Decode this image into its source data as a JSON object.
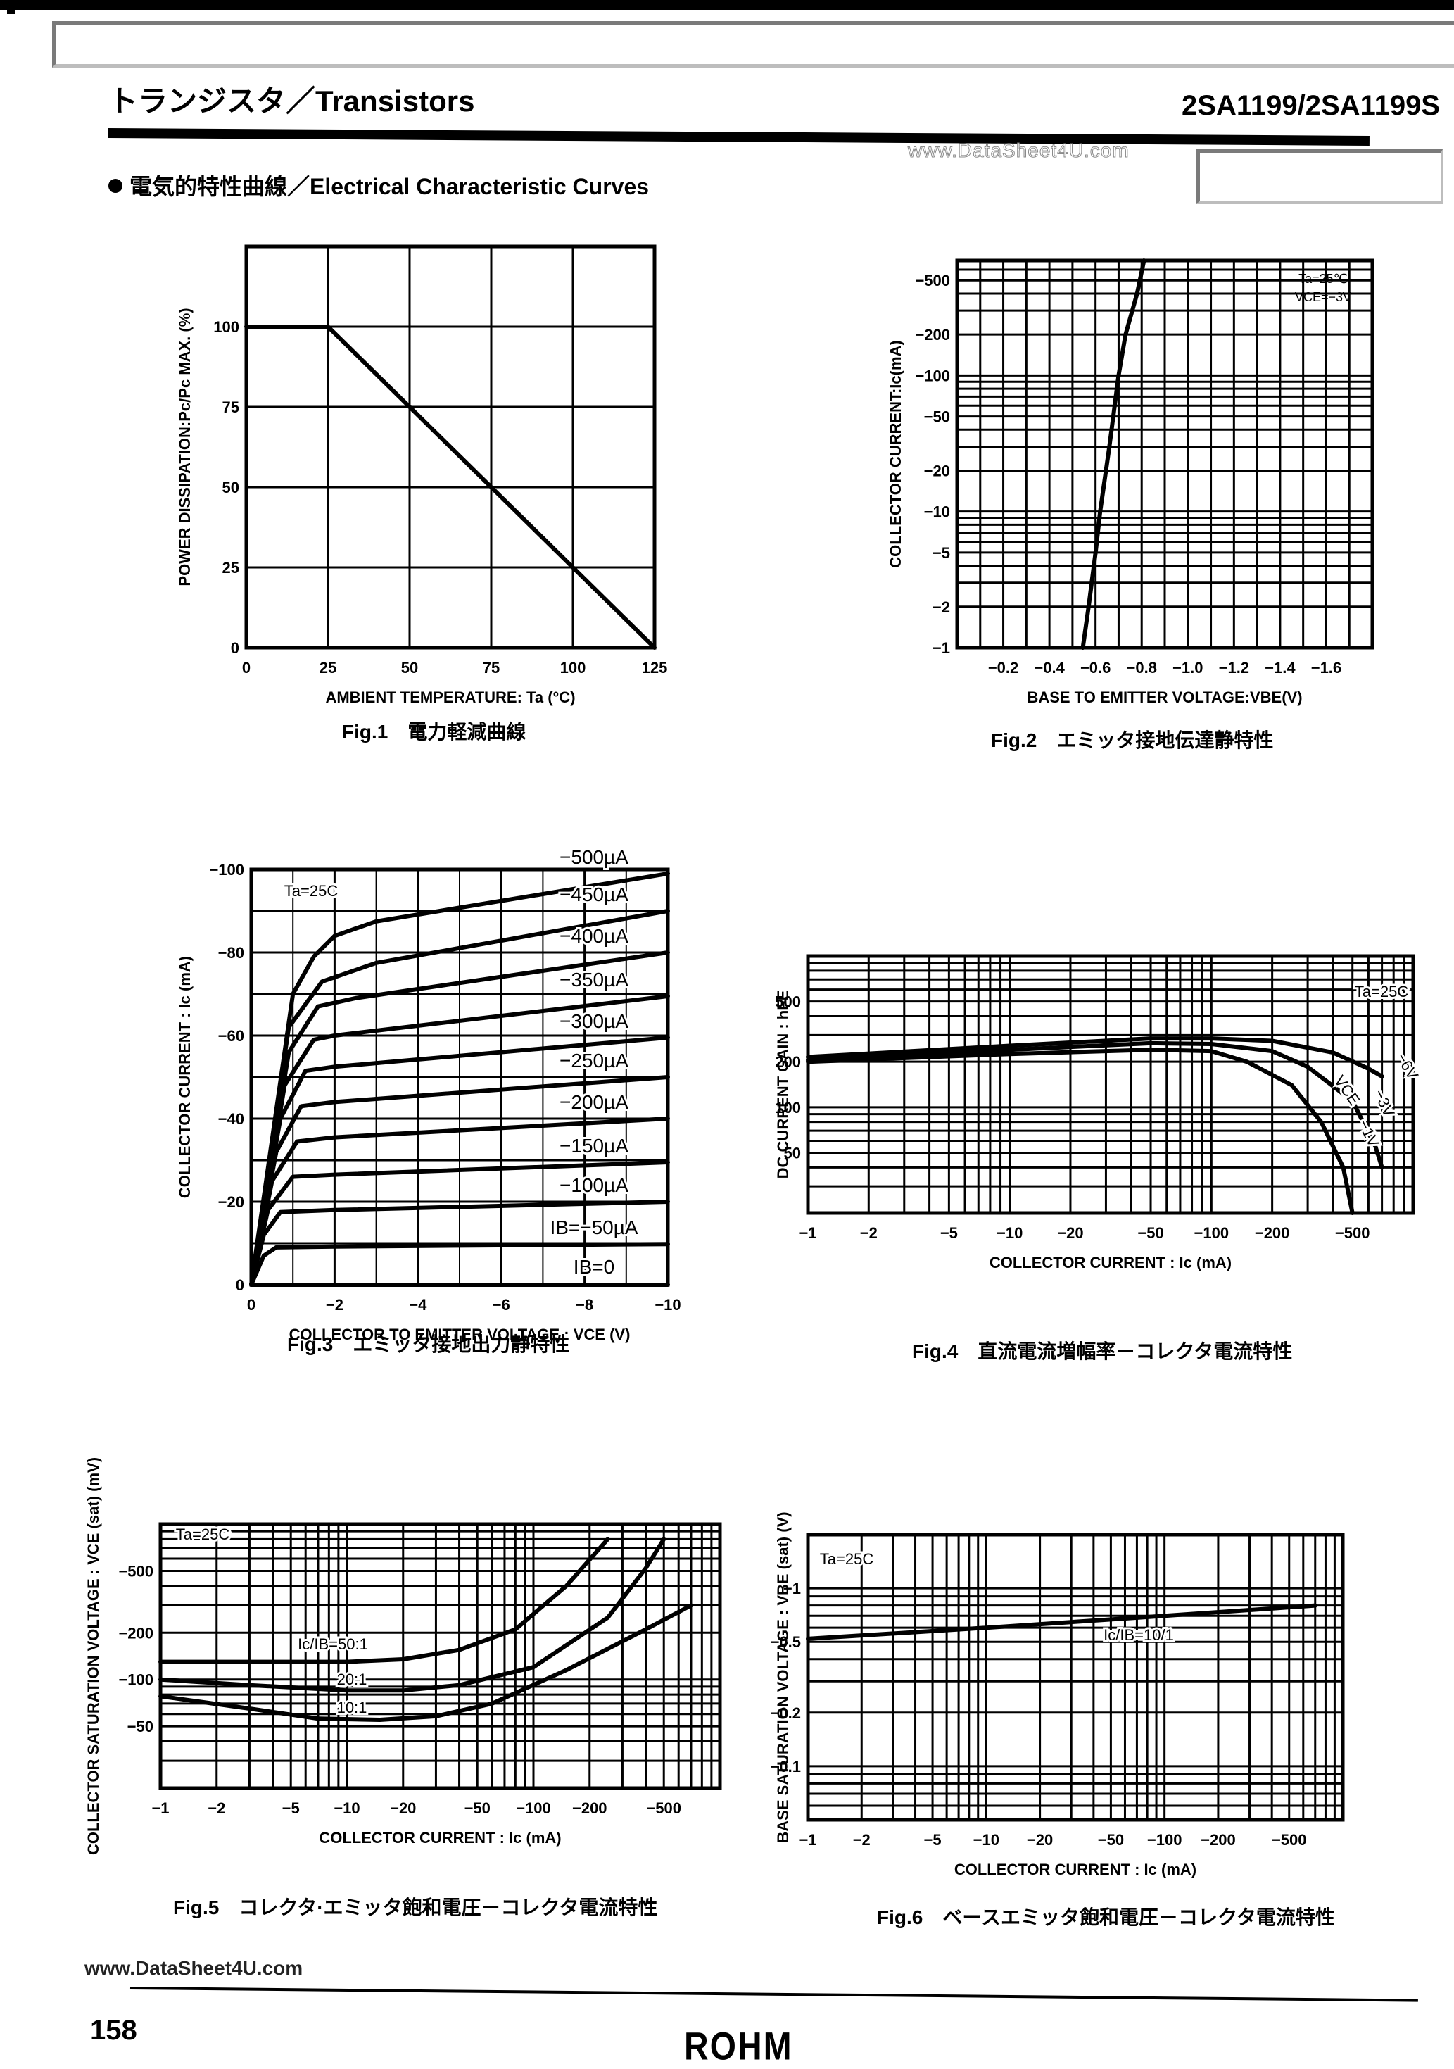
{
  "header": {
    "category": "トランジスタ／Transistors",
    "part_number": "2SA1199/2SA1199S",
    "watermark": "www.DataSheet4U.com",
    "section_title": "電気的特性曲線／Electrical Characteristic Curves"
  },
  "figures": [
    {
      "id": "fig1",
      "caption": "Fig.1　電力軽減曲線"
    },
    {
      "id": "fig2",
      "caption": "Fig.2　エミッタ接地伝達静特性"
    },
    {
      "id": "fig3",
      "caption": "Fig.3　エミッタ接地出力静特性"
    },
    {
      "id": "fig4",
      "caption": "Fig.4　直流電流増幅率－コレクタ電流特性"
    },
    {
      "id": "fig5",
      "caption": "Fig.5　コレクタ·エミッタ飽和電圧－コレクタ電流特性"
    },
    {
      "id": "fig6",
      "caption": "Fig.6　ベースエミッタ飽和電圧－コレクタ電流特性"
    }
  ],
  "footer": {
    "url": "www.DataSheet4U.com",
    "page_number": "158",
    "brand": "ROHM"
  },
  "chart_data": [
    {
      "id": "fig1",
      "type": "line",
      "title": "Fig.1 電力軽減曲線",
      "xlabel": "AMBIENT TEMPERATURE: Ta (°C)",
      "ylabel": "POWER DISSIPATION:Pc/Pc MAX. (%)",
      "xlim": [
        0,
        125
      ],
      "ylim": [
        0,
        125
      ],
      "xticks": [
        0,
        25,
        50,
        75,
        100,
        125
      ],
      "yticks": [
        0,
        25,
        50,
        75,
        100
      ],
      "grid": true,
      "series": [
        {
          "name": "Pc/Pc max",
          "x": [
            0,
            25,
            50,
            75,
            100,
            125
          ],
          "y": [
            100,
            100,
            75,
            50,
            25,
            0
          ]
        }
      ]
    },
    {
      "id": "fig2",
      "type": "line",
      "title": "Fig.2 エミッタ接地伝達静特性",
      "xlabel": "BASE TO EMITTER VOLTAGE:VBE(V)",
      "ylabel": "COLLECTOR CURRENT:Ic(mA)",
      "xscale": "linear",
      "yscale": "log",
      "xlim": [
        0,
        -1.8
      ],
      "ylim": [
        -1,
        -700
      ],
      "xticks": [
        -0.2,
        -0.4,
        -0.6,
        -0.8,
        -1.0,
        -1.2,
        -1.4,
        -1.6
      ],
      "xtick_labels": [
        "−0.2",
        "−0.4",
        "−0.6",
        "−0.8",
        "−1.0",
        "−1.2",
        "−1.4",
        "−1.6"
      ],
      "yticks": [
        -1,
        -2,
        -5,
        -10,
        -20,
        -50,
        -100,
        -200,
        -500
      ],
      "ytick_labels": [
        "−1",
        "−2",
        "−5",
        "−10",
        "−20",
        "−50",
        "−100",
        "−200",
        "−500"
      ],
      "annotations": [
        "Ta=25℃",
        "VCE=−3V"
      ],
      "grid": true,
      "series": [
        {
          "name": "VCE=-3V",
          "x": [
            -0.545,
            -0.57,
            -0.6,
            -0.62,
            -0.66,
            -0.7,
            -0.73,
            -0.78,
            -0.81
          ],
          "y": [
            -1,
            -2,
            -5,
            -10,
            -30,
            -100,
            -200,
            -400,
            -700
          ]
        }
      ]
    },
    {
      "id": "fig3",
      "type": "line",
      "title": "Fig.3 エミッタ接地出力静特性",
      "xlabel": "COLLECTOR TO EMITTER VOLTAGE : VCE (V)",
      "ylabel": "COLLECTOR CURRENT : Ic (mA)",
      "xlim": [
        0,
        -10
      ],
      "ylim": [
        0,
        -100
      ],
      "xticks": [
        0,
        -2,
        -4,
        -6,
        -8,
        -10
      ],
      "xtick_labels": [
        "0",
        "−2",
        "−4",
        "−6",
        "−8",
        "−10"
      ],
      "yticks": [
        0,
        -20,
        -40,
        -60,
        -80,
        -100
      ],
      "ytick_labels": [
        "0",
        "−20",
        "−40",
        "−60",
        "−80",
        "−100"
      ],
      "annotations": [
        "Ta=25C"
      ],
      "grid": true,
      "series": [
        {
          "name": "IB=0",
          "label": "IB=0",
          "x": [
            0,
            -10
          ],
          "y": [
            0,
            0
          ]
        },
        {
          "name": "IB=-50µA",
          "label": "IB=−50µA",
          "x": [
            0,
            -0.3,
            -0.6,
            -2,
            -10
          ],
          "y": [
            0,
            -7,
            -9,
            -9.2,
            -9.8
          ]
        },
        {
          "name": "IB=-100µA",
          "label": "−100µA",
          "x": [
            0,
            -0.3,
            -0.7,
            -2,
            -10
          ],
          "y": [
            0,
            -12,
            -17.5,
            -18,
            -20
          ]
        },
        {
          "name": "IB=-150µA",
          "label": "−150µA",
          "x": [
            0,
            -0.4,
            -1.0,
            -2,
            -10
          ],
          "y": [
            0,
            -18,
            -26,
            -26.5,
            -29.5
          ]
        },
        {
          "name": "IB=-200µA",
          "label": "−200µA",
          "x": [
            0,
            -0.5,
            -1.1,
            -2,
            -10
          ],
          "y": [
            0,
            -25,
            -34.5,
            -35.5,
            -40
          ]
        },
        {
          "name": "IB=-250µA",
          "label": "−250µA",
          "x": [
            0,
            -0.6,
            -1.2,
            -2,
            -10
          ],
          "y": [
            0,
            -32,
            -43,
            -44,
            -50
          ]
        },
        {
          "name": "IB=-300µA",
          "label": "−300µA",
          "x": [
            0,
            -0.7,
            -1.3,
            -2,
            -10
          ],
          "y": [
            0,
            -40,
            -51.5,
            -52.5,
            -59.5
          ]
        },
        {
          "name": "IB=-350µA",
          "label": "−350µA",
          "x": [
            0,
            -0.8,
            -1.5,
            -2,
            -10
          ],
          "y": [
            0,
            -48,
            -59,
            -60,
            -69.5
          ]
        },
        {
          "name": "IB=-400µA",
          "label": "−400µA",
          "x": [
            0,
            -0.9,
            -1.6,
            -2.5,
            -10
          ],
          "y": [
            0,
            -56,
            -67,
            -69,
            -80
          ]
        },
        {
          "name": "IB=-450µA",
          "label": "−450µA",
          "x": [
            0,
            -0.9,
            -1.7,
            -3,
            -10
          ],
          "y": [
            0,
            -62,
            -73,
            -77.5,
            -90
          ]
        },
        {
          "name": "IB=-500µA",
          "label": "−500µA",
          "x": [
            0,
            -1.0,
            -1.5,
            -2,
            -3,
            -10
          ],
          "y": [
            0,
            -70,
            -79,
            -84,
            -87.5,
            -99
          ]
        }
      ]
    },
    {
      "id": "fig4",
      "type": "line",
      "title": "Fig.4 直流電流増幅率－コレクタ電流特性",
      "xlabel": "COLLECTOR CURRENT : Ic (mA)",
      "ylabel": "DC CURRENT GAIN : hFE",
      "xscale": "log",
      "yscale": "log",
      "xlim": [
        -1,
        -1000
      ],
      "ylim": [
        20,
        1000
      ],
      "xticks": [
        -1,
        -2,
        -5,
        -10,
        -20,
        -50,
        -100,
        -200,
        -500
      ],
      "xtick_labels": [
        "−1",
        "−2",
        "−5",
        "−10",
        "−20",
        "−50",
        "−100",
        "−200",
        "−500"
      ],
      "yticks": [
        50,
        100,
        200,
        500
      ],
      "annotations": [
        "Ta=25C",
        "VCE"
      ],
      "grid": true,
      "series": [
        {
          "name": "VCE=-6V",
          "label": "−6V",
          "x": [
            -1,
            -10,
            -50,
            -100,
            -200,
            -400,
            -600,
            -700
          ],
          "y": [
            215,
            255,
            285,
            285,
            275,
            230,
            180,
            160
          ]
        },
        {
          "name": "VCE=-3V",
          "label": "−3V",
          "x": [
            -1,
            -10,
            -50,
            -100,
            -200,
            -300,
            -500,
            -650,
            -700
          ],
          "y": [
            205,
            240,
            265,
            262,
            235,
            185,
            110,
            55,
            40
          ]
        },
        {
          "name": "VCE=-1V",
          "label": "−1V",
          "x": [
            -1,
            -10,
            -50,
            -100,
            -150,
            -250,
            -350,
            -450,
            -500
          ],
          "y": [
            200,
            225,
            240,
            235,
            200,
            140,
            80,
            40,
            20
          ]
        }
      ]
    },
    {
      "id": "fig5",
      "type": "line",
      "title": "Fig.5 コレクタ·エミッタ飽和電圧－コレクタ電流特性",
      "xlabel": "COLLECTOR CURRENT : Ic (mA)",
      "ylabel": "COLLECTOR SATURATION VOLTAGE : VCE (sat) (mV)",
      "xscale": "log",
      "yscale": "log",
      "xlim": [
        -1,
        -1000
      ],
      "ylim": [
        -20,
        -1000
      ],
      "xticks": [
        -1,
        -2,
        -5,
        -10,
        -20,
        -50,
        -100,
        -200,
        -500
      ],
      "xtick_labels": [
        "−1",
        "−2",
        "−5",
        "−10",
        "−20",
        "−50",
        "−100",
        "−200",
        "−500"
      ],
      "yticks": [
        -50,
        -100,
        -200,
        -500
      ],
      "ytick_labels": [
        "−50",
        "−100",
        "−200",
        "−500"
      ],
      "annotations": [
        "Ta=25C"
      ],
      "grid": true,
      "series": [
        {
          "name": "Ic/IB=50:1",
          "label": "Ic/IB=50:1",
          "x": [
            -1,
            -5,
            -10,
            -20,
            -40,
            -80,
            -150,
            -250
          ],
          "y": [
            -130,
            -130,
            -130,
            -135,
            -155,
            -210,
            -400,
            -800
          ]
        },
        {
          "name": "Ic/IB=20:1",
          "label": "20:1",
          "x": [
            -1,
            -3,
            -10,
            -20,
            -40,
            -100,
            -250,
            -400,
            -500
          ],
          "y": [
            -100,
            -92,
            -85,
            -85,
            -92,
            -120,
            -250,
            -520,
            -800
          ]
        },
        {
          "name": "Ic/IB=10:1",
          "label": "10:1",
          "x": [
            -1,
            -3,
            -7,
            -15,
            -30,
            -60,
            -150,
            -400,
            -700
          ],
          "y": [
            -78,
            -65,
            -56,
            -55,
            -58,
            -70,
            -115,
            -210,
            -300
          ]
        }
      ]
    },
    {
      "id": "fig6",
      "type": "line",
      "title": "Fig.6 ベースエミッタ飽和電圧－コレクタ電流特性",
      "xlabel": "COLLECTOR CURRENT : Ic (mA)",
      "ylabel": "BASE SATURATION VOLTAGE : VBE (sat) (V)",
      "xscale": "log",
      "yscale": "log",
      "xlim": [
        -1,
        -1000
      ],
      "ylim": [
        -0.05,
        -2
      ],
      "xticks": [
        -1,
        -2,
        -5,
        -10,
        -20,
        -50,
        -100,
        -200,
        -500
      ],
      "xtick_labels": [
        "−1",
        "−2",
        "−5",
        "−10",
        "−20",
        "−50",
        "−100",
        "−200",
        "−500"
      ],
      "yticks": [
        -0.1,
        -0.2,
        -0.5,
        -1
      ],
      "ytick_labels": [
        "−0.1",
        "−0.2",
        "−0.5",
        "−1"
      ],
      "annotations": [
        "Ta=25C"
      ],
      "grid": true,
      "series": [
        {
          "name": "Ic/IB=10/1",
          "label": "Ic/IB=10/1",
          "x": [
            -1,
            -10,
            -100,
            -700
          ],
          "y": [
            -0.52,
            -0.6,
            -0.7,
            -0.8
          ]
        }
      ]
    }
  ]
}
